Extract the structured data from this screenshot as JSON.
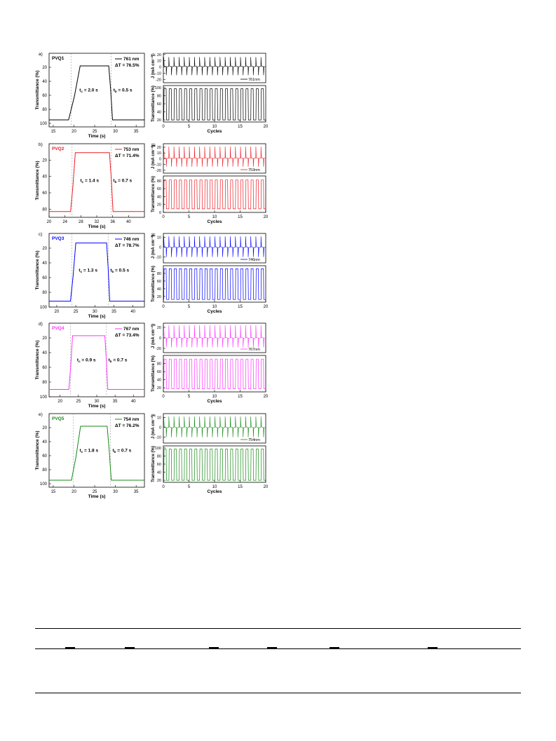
{
  "panels": [
    {
      "left": {
        "letter": "a)",
        "name": "PVQ1",
        "color": "#000000",
        "wavelength": "761 nm",
        "delta": "ΔT = 76.5%",
        "tc": "2.0 s",
        "tb": "0.5 s",
        "xlim": [
          14,
          37
        ],
        "xticks": [
          15,
          20,
          25,
          30,
          35
        ],
        "ylim": [
          0,
          105
        ],
        "yticks": [
          20,
          40,
          60,
          80,
          100
        ],
        "T_high": 18,
        "T_low": 95,
        "t_rise_start": 18.7,
        "t_rise_end": 21.5,
        "t_fall_start": 28.4,
        "t_fall_end": 29.3,
        "dash1": 19.3,
        "dash2": 29.0
      },
      "right": {
        "letter": "f)",
        "legend": "761nm",
        "J_yticks": [
          20,
          10,
          0,
          -10,
          -20
        ],
        "J_ylim": [
          -25,
          22
        ],
        "J_peak": 16,
        "J_base": 1,
        "J_trough": -13,
        "T_yticks": [
          100,
          80,
          60,
          40,
          20
        ],
        "T_ylim": [
          15,
          105
        ],
        "T_high": 97,
        "T_low": 20
      }
    },
    {
      "left": {
        "letter": "b)",
        "name": "PVQ2",
        "color": "#ee1c24",
        "wavelength": "753 nm",
        "delta": "ΔT = 71.4%",
        "tc": "1.4 s",
        "tb": "0.7 s",
        "xlim": [
          20,
          44
        ],
        "xticks": [
          20,
          24,
          28,
          32,
          36,
          40
        ],
        "ylim": [
          0,
          90
        ],
        "yticks": [
          20,
          40,
          60,
          80
        ],
        "T_high": 11,
        "T_low": 83,
        "t_rise_start": 25.4,
        "t_rise_end": 26.6,
        "t_fall_start": 35.2,
        "t_fall_end": 36.1,
        "dash1": 25.8,
        "dash2": 35.6
      },
      "right": {
        "letter": "g)",
        "legend": "753nm",
        "J_yticks": [
          20,
          10,
          0,
          -10,
          -20
        ],
        "J_ylim": [
          -25,
          26
        ],
        "J_peak": 21,
        "J_base": 1,
        "J_trough": -14,
        "T_yticks": [
          80,
          60,
          40,
          20,
          0
        ],
        "T_ylim": [
          0,
          92
        ],
        "T_high": 82,
        "T_low": 9
      }
    },
    {
      "left": {
        "letter": "c)",
        "name": "PVQ3",
        "color": "#0000ff",
        "wavelength": "746 nm",
        "delta": "ΔT = 78.7%",
        "tc": "1.3 s",
        "tb": "0.5 s",
        "xlim": [
          18,
          43
        ],
        "xticks": [
          20,
          25,
          30,
          35,
          40
        ],
        "ylim": [
          0,
          100
        ],
        "yticks": [
          20,
          40,
          60,
          80,
          100
        ],
        "T_high": 13,
        "T_low": 92,
        "t_rise_start": 23.6,
        "t_rise_end": 25.0,
        "t_fall_start": 33.1,
        "t_fall_end": 33.9,
        "dash1": 24.0,
        "dash2": 33.5
      },
      "right": {
        "letter": "h)",
        "legend": "746nm",
        "J_yticks": [
          10,
          0,
          -10
        ],
        "J_ylim": [
          -16,
          14
        ],
        "J_peak": 11,
        "J_base": 0,
        "J_trough": -10,
        "T_yticks": [
          80,
          60,
          40,
          20
        ],
        "T_ylim": [
          5,
          100
        ],
        "T_high": 92,
        "T_low": 12
      }
    },
    {
      "left": {
        "letter": "d)",
        "name": "PVQ4",
        "color": "#ff33ff",
        "wavelength": "767 nm",
        "delta": "ΔT = 73.4%",
        "tc": "0.9 s",
        "tb": "0.7 s",
        "xlim": [
          17,
          43
        ],
        "xticks": [
          20,
          25,
          30,
          35,
          40
        ],
        "ylim": [
          0,
          100
        ],
        "yticks": [
          20,
          40,
          60,
          80,
          100
        ],
        "T_high": 17,
        "T_low": 90,
        "t_rise_start": 22.4,
        "t_rise_end": 23.4,
        "t_fall_start": 32.2,
        "t_fall_end": 33.0,
        "dash1": 22.8,
        "dash2": 32.6
      },
      "right": {
        "letter": "i)",
        "legend": "767nm",
        "J_yticks": [
          20,
          0,
          -20
        ],
        "J_ylim": [
          -28,
          28
        ],
        "J_peak": 24,
        "J_base": 0,
        "J_trough": -18,
        "T_yticks": [
          80,
          60,
          40,
          20
        ],
        "T_ylim": [
          10,
          100
        ],
        "T_high": 91,
        "T_low": 18
      }
    },
    {
      "left": {
        "letter": "e)",
        "name": "PVQ5",
        "color": "#178a17",
        "wavelength": "754 nm",
        "delta": "ΔT = 76.2%",
        "tc": "1.8 s",
        "tb": "0.7 s",
        "xlim": [
          14,
          37
        ],
        "xticks": [
          15,
          20,
          25,
          30,
          35
        ],
        "ylim": [
          0,
          105
        ],
        "yticks": [
          20,
          40,
          60,
          80,
          100
        ],
        "T_high": 18,
        "T_low": 95,
        "t_rise_start": 19.4,
        "t_rise_end": 21.6,
        "t_fall_start": 28.0,
        "t_fall_end": 29.0,
        "dash1": 19.8,
        "dash2": 28.8
      },
      "right": {
        "letter": "j)",
        "legend": "754nm",
        "J_yticks": [
          10,
          0,
          -10
        ],
        "J_ylim": [
          -16,
          14
        ],
        "J_peak": 11,
        "J_base": 0,
        "J_trough": -10,
        "T_yticks": [
          100,
          80,
          60,
          40,
          20
        ],
        "T_ylim": [
          15,
          105
        ],
        "T_high": 97,
        "T_low": 20
      }
    }
  ],
  "labels": {
    "time_axis": "Time (s)",
    "cycles_axis": "Cycles",
    "transmittance_axis": "Transmittance (%)",
    "current_axis": "J (mA cm⁻²)",
    "tc_prefix": "tc = ",
    "tb_prefix": "tb = "
  },
  "cycles": {
    "xlim": [
      0,
      20
    ],
    "xticks": [
      0,
      5,
      10,
      15,
      20
    ],
    "count": 20
  },
  "chart_data": {
    "type": "line",
    "figure": "spectroelectrochemical switching of PVQ1–PVQ5",
    "response_time_curves": [
      {
        "panel": "a",
        "series": "PVQ1",
        "legend": "761 nm",
        "delta_T_percent": 76.5,
        "tc_s": 2.0,
        "tb_s": 0.5,
        "xlabel": "Time (s)",
        "ylabel": "Transmittance (%)",
        "T_bleached": 18,
        "T_colored": 95
      },
      {
        "panel": "b",
        "series": "PVQ2",
        "legend": "753 nm",
        "delta_T_percent": 71.4,
        "tc_s": 1.4,
        "tb_s": 0.7,
        "xlabel": "Time (s)",
        "ylabel": "Transmittance (%)",
        "T_bleached": 11,
        "T_colored": 83
      },
      {
        "panel": "c",
        "series": "PVQ3",
        "legend": "746 nm",
        "delta_T_percent": 78.7,
        "tc_s": 1.3,
        "tb_s": 0.5,
        "xlabel": "Time (s)",
        "ylabel": "Transmittance (%)",
        "T_bleached": 13,
        "T_colored": 92
      },
      {
        "panel": "d",
        "series": "PVQ4",
        "legend": "767 nm",
        "delta_T_percent": 73.4,
        "tc_s": 0.9,
        "tb_s": 0.7,
        "xlabel": "Time (s)",
        "ylabel": "Transmittance (%)",
        "T_bleached": 17,
        "T_colored": 90
      },
      {
        "panel": "e",
        "series": "PVQ5",
        "legend": "754 nm",
        "delta_T_percent": 76.2,
        "tc_s": 1.8,
        "tb_s": 0.7,
        "xlabel": "Time (s)",
        "ylabel": "Transmittance (%)",
        "T_bleached": 18,
        "T_colored": 95
      }
    ],
    "cycling_curves": [
      {
        "panel": "f",
        "legend": "761nm",
        "cycles": 20,
        "J_range": [
          -13,
          16
        ],
        "T_range": [
          20,
          97
        ]
      },
      {
        "panel": "g",
        "legend": "753nm",
        "cycles": 20,
        "J_range": [
          -14,
          21
        ],
        "T_range": [
          9,
          82
        ]
      },
      {
        "panel": "h",
        "legend": "746nm",
        "cycles": 20,
        "J_range": [
          -10,
          11
        ],
        "T_range": [
          12,
          92
        ]
      },
      {
        "panel": "i",
        "legend": "767nm",
        "cycles": 20,
        "J_range": [
          -18,
          24
        ],
        "T_range": [
          18,
          91
        ]
      },
      {
        "panel": "j",
        "legend": "754nm",
        "cycles": 20,
        "J_range": [
          -10,
          11
        ],
        "T_range": [
          20,
          97
        ]
      }
    ]
  }
}
